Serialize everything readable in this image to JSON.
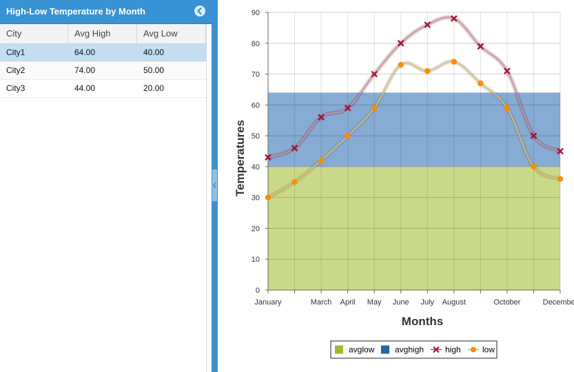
{
  "panel": {
    "title": "High-Low Temperature by Month",
    "columns": [
      "City",
      "Avg High",
      "Avg Low"
    ],
    "rows": [
      {
        "city": "City1",
        "avg_high": "64.00",
        "avg_low": "40.00",
        "selected": true
      },
      {
        "city": "City2",
        "avg_high": "74.00",
        "avg_low": "50.00",
        "selected": false
      },
      {
        "city": "City3",
        "avg_high": "44.00",
        "avg_low": "20.00",
        "selected": false
      }
    ]
  },
  "icons": {
    "collapse": "chevron-left-circle-icon",
    "splitter": "chevron-left-icon"
  },
  "colors": {
    "header": "#3892d3",
    "selected_row": "#c3ddf1",
    "avglow_band": "#c9d987",
    "avghigh_band": "#86acd3",
    "high_line": "#aa1133",
    "low_line": "#ff8c00"
  },
  "chart_data": {
    "type": "line",
    "xlabel": "Months",
    "ylabel": "Temperatures",
    "ylim": [
      0,
      90
    ],
    "yticks": [
      0,
      10,
      20,
      30,
      40,
      50,
      60,
      70,
      80,
      90
    ],
    "x_tick_labels": [
      "January",
      "",
      "March",
      "April",
      "May",
      "June",
      "July",
      "August",
      "",
      "October",
      "",
      "December"
    ],
    "bands": [
      {
        "name": "avglow",
        "from": 0,
        "to": 40,
        "color": "#c9d987"
      },
      {
        "name": "avghigh",
        "from": 40,
        "to": 64,
        "color": "#86acd3"
      }
    ],
    "series": [
      {
        "name": "high",
        "values": [
          43,
          46,
          56,
          59,
          70,
          80,
          86,
          88,
          79,
          71,
          50,
          45
        ],
        "marker": "x",
        "color": "#aa1133"
      },
      {
        "name": "low",
        "values": [
          30,
          35,
          42,
          50,
          59,
          73,
          71,
          74,
          67,
          59,
          40,
          36
        ],
        "marker": "circle",
        "color": "#ff8c00"
      }
    ],
    "legend": [
      {
        "label": "avglow",
        "kind": "box",
        "color": "#a3b52c"
      },
      {
        "label": "avghigh",
        "kind": "box",
        "color": "#2266a8"
      },
      {
        "label": "high",
        "kind": "x-line",
        "color": "#aa1133"
      },
      {
        "label": "low",
        "kind": "circle-line",
        "color": "#ff8c00"
      }
    ],
    "legend_position": "bottom",
    "grid": true
  }
}
